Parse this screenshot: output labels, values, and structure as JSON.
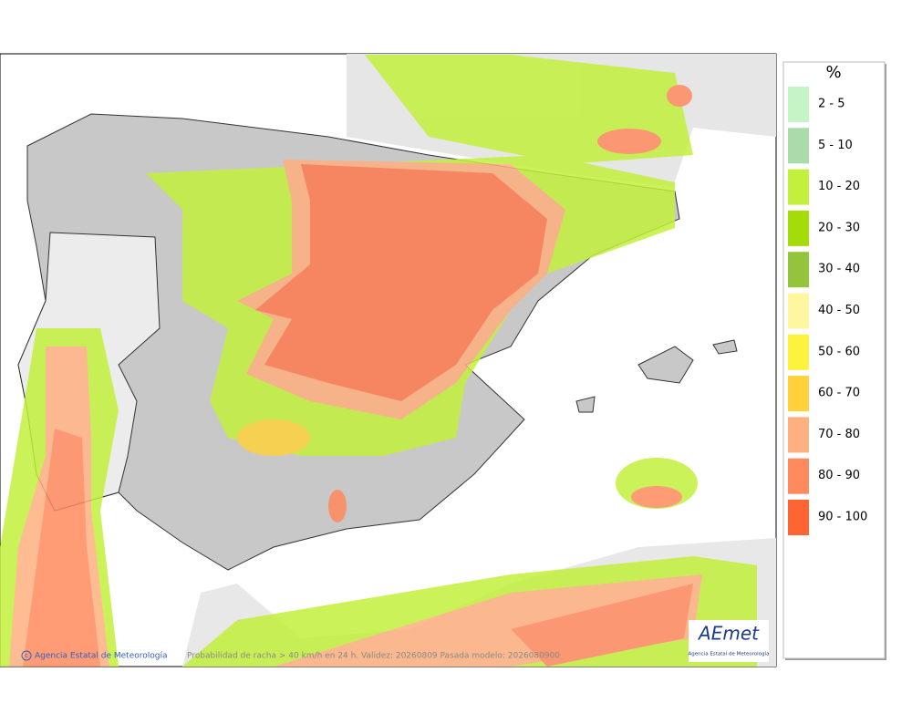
{
  "map": {
    "legend": {
      "title": "%",
      "items": [
        {
          "label": "2 - 5",
          "color": "#c4f5c6"
        },
        {
          "label": "5 - 10",
          "color": "#a9dca9"
        },
        {
          "label": "10 - 20",
          "color": "#c3f03c"
        },
        {
          "label": "20 - 30",
          "color": "#a4dc0a"
        },
        {
          "label": "30 - 40",
          "color": "#94c43c"
        },
        {
          "label": "40 - 50",
          "color": "#fff7a0"
        },
        {
          "label": "50 - 60",
          "color": "#fff23c"
        },
        {
          "label": "60 - 70",
          "color": "#ffd23c"
        },
        {
          "label": "70 - 80",
          "color": "#ffb080"
        },
        {
          "label": "80 - 90",
          "color": "#ff8a5e"
        },
        {
          "label": "90 - 100",
          "color": "#ff6432"
        }
      ]
    },
    "footer": {
      "credit": "Agencia Estatal de Meteorología",
      "caption": "Probabilidad de racha > 40 km/h en 24 h. Validez: 20260809 Pasada modelo: 2026080900"
    },
    "logo": {
      "name": "AEmet",
      "subtitle": "Agencia Estatal de Meteorología"
    }
  }
}
